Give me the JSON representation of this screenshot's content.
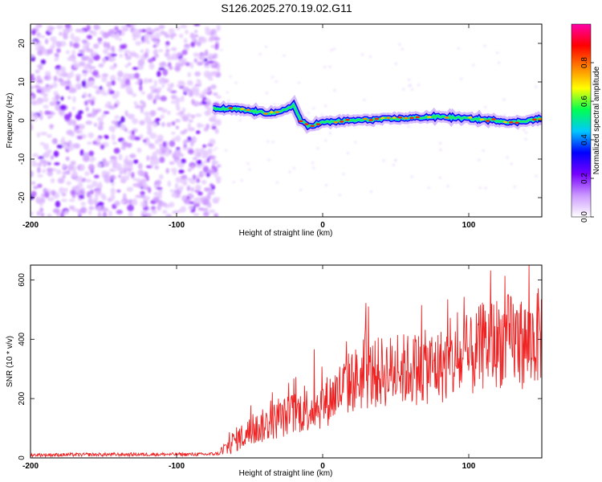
{
  "figure": {
    "title": "S126.2025.270.19.02.G11"
  },
  "chart_data": [
    {
      "type": "heatmap",
      "xlabel": "Height of straight line (km)",
      "ylabel": "Frequency (Hz)",
      "xlim": [
        -200,
        150
      ],
      "ylim": [
        -25,
        25
      ],
      "x_ticks": [
        "-200",
        "-100",
        "0",
        "100"
      ],
      "y_ticks": [
        "-20",
        "-10",
        "0",
        "10",
        "20"
      ],
      "colorbar": {
        "label": "Normalized spectral amplitude",
        "range": [
          0,
          1
        ],
        "ticks": [
          "0.0",
          "0.2",
          "0.4",
          "0.6",
          "0.8"
        ],
        "colormap": [
          "#ffffff",
          "#cc99ff",
          "#7700ff",
          "#0000ff",
          "#00c8ff",
          "#00ff50",
          "#ffff00",
          "#ff8000",
          "#ff0000",
          "#ff00aa"
        ]
      },
      "noise_region": {
        "x_range": [
          -200,
          -75
        ],
        "freq_range": [
          -25,
          25
        ],
        "amplitude": 0.05
      },
      "signal_trace": {
        "x": [
          -75,
          -60,
          -50,
          -40,
          -30,
          -25,
          -20,
          -15,
          -10,
          0,
          20,
          50,
          80,
          100,
          120,
          130,
          150
        ],
        "freq": [
          3,
          3,
          2.5,
          2,
          2,
          3,
          4,
          0,
          -1.5,
          -0.5,
          0,
          0.5,
          1,
          0.5,
          0,
          -0.5,
          0.5
        ]
      }
    },
    {
      "type": "line",
      "xlabel": "Height of straight line (km)",
      "ylabel": "SNR (10 * v/v)",
      "xlim": [
        -200,
        150
      ],
      "ylim": [
        0,
        650
      ],
      "x_ticks": [
        "-200",
        "-100",
        "0",
        "100"
      ],
      "y_ticks": [
        "0",
        "200",
        "400",
        "600"
      ],
      "color": "#ee2222",
      "trend": {
        "x": [
          -200,
          -120,
          -80,
          -70,
          -60,
          -40,
          -20,
          0,
          20,
          40,
          60,
          80,
          100,
          110,
          120,
          130,
          140,
          150
        ],
        "y": [
          10,
          12,
          12,
          15,
          60,
          110,
          150,
          180,
          260,
          290,
          300,
          310,
          330,
          380,
          390,
          400,
          380,
          420
        ]
      }
    }
  ]
}
